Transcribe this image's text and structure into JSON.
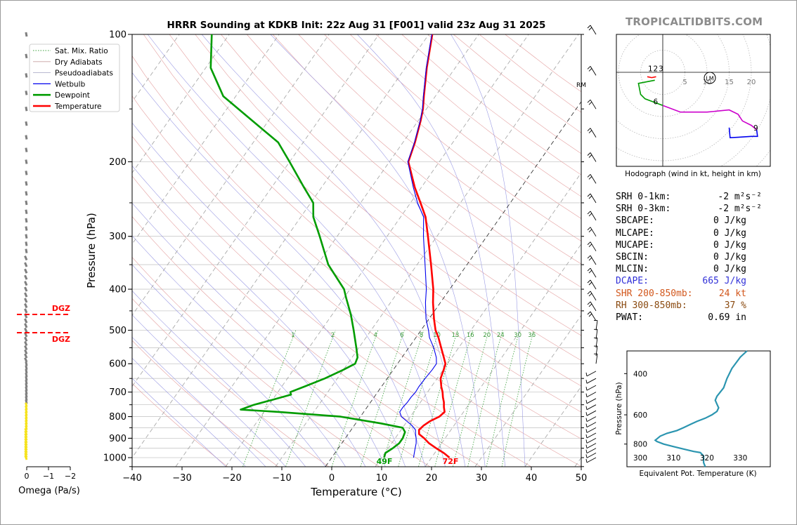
{
  "brand": "TROPICALTIDBITS.COM",
  "chart_data": [
    {
      "type": "line",
      "title": "HRRR Sounding at KDKB Init: 22z Aug 31 [F001] valid 23z Aug 31 2025",
      "xlabel": "Temperature (°C)",
      "ylabel": "Pressure (hPa)",
      "xlim": [
        -40,
        50
      ],
      "ylim": [
        1050,
        100
      ],
      "log_scale_y": true,
      "skew_t": true,
      "x_ticks": [
        -40,
        -30,
        -20,
        -10,
        0,
        10,
        20,
        30,
        40,
        50
      ],
      "y_ticks": [
        100,
        200,
        300,
        400,
        500,
        600,
        700,
        800,
        900,
        1000
      ],
      "mixing_ratio_labels": [
        "1",
        "2",
        "4",
        "6",
        "8",
        "10",
        "13",
        "16",
        "20",
        "24",
        "30",
        "36"
      ],
      "legend": {
        "placement": "top-left",
        "entries": [
          "Sat. Mix. Ratio",
          "Dry Adiabats",
          "Pseudoadiabats",
          "Wetbulb",
          "Dewpoint",
          "Temperature"
        ]
      },
      "series": [
        {
          "name": "Temperature",
          "color": "#ff0000",
          "points": [
            [
              1000,
              23.6
            ],
            [
              975,
              21.8
            ],
            [
              950,
              19.6
            ],
            [
              925,
              17.5
            ],
            [
              900,
              15.8
            ],
            [
              880,
              14.2
            ],
            [
              860,
              13.6
            ],
            [
              840,
              13.9
            ],
            [
              820,
              14.6
            ],
            [
              800,
              15.8
            ],
            [
              780,
              16.2
            ],
            [
              760,
              15.4
            ],
            [
              740,
              14.7
            ],
            [
              720,
              13.8
            ],
            [
              700,
              13.0
            ],
            [
              680,
              12.0
            ],
            [
              650,
              10.7
            ],
            [
              620,
              10.1
            ],
            [
              600,
              9.6
            ],
            [
              580,
              8.4
            ],
            [
              550,
              6.5
            ],
            [
              520,
              4.5
            ],
            [
              500,
              2.9
            ],
            [
              470,
              1.0
            ],
            [
              430,
              -1.5
            ],
            [
              400,
              -3.3
            ],
            [
              350,
              -7.2
            ],
            [
              300,
              -11.8
            ],
            [
              270,
              -15.0
            ],
            [
              250,
              -18.0
            ],
            [
              230,
              -21.3
            ],
            [
              200,
              -26.2
            ],
            [
              180,
              -27.6
            ],
            [
              160,
              -29.5
            ],
            [
              150,
              -30.7
            ],
            [
              140,
              -32.3
            ],
            [
              120,
              -35.7
            ],
            [
              100,
              -39.3
            ]
          ]
        },
        {
          "name": "Dewpoint",
          "color": "#009c00",
          "points": [
            [
              1000,
              10.5
            ],
            [
              975,
              10.1
            ],
            [
              950,
              10.9
            ],
            [
              925,
              11.5
            ],
            [
              900,
              11.5
            ],
            [
              870,
              11.1
            ],
            [
              850,
              10.0
            ],
            [
              830,
              5.0
            ],
            [
              800,
              -4.0
            ],
            [
              780,
              -17.0
            ],
            [
              770,
              -25.0
            ],
            [
              750,
              -23.0
            ],
            [
              730,
              -20.0
            ],
            [
              710,
              -17.0
            ],
            [
              700,
              -17.5
            ],
            [
              680,
              -15.5
            ],
            [
              650,
              -12.5
            ],
            [
              620,
              -10.0
            ],
            [
              600,
              -8.5
            ],
            [
              580,
              -8.9
            ],
            [
              550,
              -10.5
            ],
            [
              500,
              -13.5
            ],
            [
              460,
              -16.2
            ],
            [
              420,
              -19.5
            ],
            [
              400,
              -21.2
            ],
            [
              350,
              -27.8
            ],
            [
              300,
              -33.5
            ],
            [
              270,
              -37.5
            ],
            [
              250,
              -39.5
            ],
            [
              230,
              -43.5
            ],
            [
              200,
              -50.0
            ],
            [
              180,
              -55.0
            ],
            [
              160,
              -63.2
            ],
            [
              140,
              -72.5
            ],
            [
              120,
              -79.0
            ],
            [
              100,
              -83.5
            ]
          ]
        },
        {
          "name": "Wetbulb",
          "color": "#0000ee",
          "points": [
            [
              1000,
              16.4
            ],
            [
              975,
              15.9
            ],
            [
              950,
              15.4
            ],
            [
              925,
              14.9
            ],
            [
              900,
              14.2
            ],
            [
              880,
              13.5
            ],
            [
              860,
              12.9
            ],
            [
              840,
              11.6
            ],
            [
              820,
              9.9
            ],
            [
              800,
              8.2
            ],
            [
              780,
              7.2
            ],
            [
              760,
              7.2
            ],
            [
              740,
              7.4
            ],
            [
              720,
              7.4
            ],
            [
              700,
              7.6
            ],
            [
              680,
              7.5
            ],
            [
              650,
              7.6
            ],
            [
              620,
              7.8
            ],
            [
              600,
              7.8
            ],
            [
              580,
              6.9
            ],
            [
              550,
              5.0
            ],
            [
              520,
              2.7
            ],
            [
              500,
              1.5
            ],
            [
              470,
              -0.6
            ],
            [
              430,
              -3.0
            ],
            [
              400,
              -4.7
            ],
            [
              350,
              -8.4
            ],
            [
              300,
              -12.7
            ],
            [
              270,
              -15.4
            ],
            [
              250,
              -18.6
            ],
            [
              230,
              -21.6
            ],
            [
              200,
              -26.3
            ],
            [
              180,
              -27.7
            ],
            [
              160,
              -29.6
            ],
            [
              150,
              -30.8
            ],
            [
              140,
              -32.4
            ],
            [
              120,
              -35.8
            ],
            [
              100,
              -39.4
            ]
          ]
        }
      ],
      "annotations": {
        "surface_dewpoint": "49F",
        "surface_temperature": "72F",
        "rm_label": "RM"
      }
    },
    {
      "type": "line",
      "xlabel": "Omega (Pa/s)",
      "x_ticks": [
        "0",
        "−1",
        "−2"
      ],
      "dgz_label": "DGZ",
      "dgz_bounds_hpa": [
        461,
        508
      ],
      "colors": {
        "dgz": "#ff0000",
        "omega_upper": "#7f7f7f",
        "omega_lower": "#f5e21a"
      }
    },
    {
      "type": "line",
      "caption": "Hodograph (wind in kt, height in km)",
      "ring_labels": [
        "5",
        "10",
        "15",
        "20"
      ],
      "height_labels": [
        "1",
        "2",
        "3",
        "6",
        "9"
      ],
      "storm_motion_label": "LM",
      "colors": {
        "0-3km": "#ff0000",
        "3-6km": "#009c00",
        "6-9km": "#cc00cc",
        "9-12km": "#0000ee"
      },
      "points_u_v": [
        [
          -3.5,
          -1.0
        ],
        [
          -2.5,
          -1.2
        ],
        [
          -1.5,
          -1.0
        ],
        [
          -1.8,
          -1.8
        ],
        [
          -5.5,
          -2.5
        ],
        [
          -5.0,
          -5.0
        ],
        [
          -4.0,
          -6.0
        ],
        [
          0,
          -7.5
        ],
        [
          4,
          -9.0
        ],
        [
          10,
          -9.0
        ],
        [
          15,
          -8.5
        ],
        [
          17,
          -9.5
        ],
        [
          18,
          -11
        ],
        [
          20,
          -12
        ],
        [
          21.2,
          -13
        ],
        [
          21.4,
          -14.5
        ],
        [
          20,
          -14.5
        ],
        [
          17,
          -14.7
        ],
        [
          15.2,
          -14.8
        ],
        [
          15,
          -12.5
        ]
      ]
    },
    {
      "type": "line",
      "xlabel": "Equivalent Pot. Temperature (K)",
      "ylabel": "Pressure (hPa)",
      "x_ticks": [
        300,
        310,
        320,
        330
      ],
      "y_ticks": [
        400,
        600,
        800
      ],
      "xlim": [
        296,
        339
      ],
      "ylim": [
        1000,
        320
      ],
      "color": "#2b95b0",
      "points": [
        [
          1000,
          319.5
        ],
        [
          960,
          319
        ],
        [
          900,
          319
        ],
        [
          870,
          318
        ],
        [
          860,
          316
        ],
        [
          840,
          313
        ],
        [
          820,
          310
        ],
        [
          800,
          307
        ],
        [
          780,
          305
        ],
        [
          770,
          304.5
        ],
        [
          760,
          305
        ],
        [
          740,
          306
        ],
        [
          720,
          308
        ],
        [
          700,
          311
        ],
        [
          680,
          313
        ],
        [
          660,
          315
        ],
        [
          640,
          317
        ],
        [
          620,
          319.5
        ],
        [
          600,
          321.5
        ],
        [
          580,
          323
        ],
        [
          560,
          323.5
        ],
        [
          540,
          323
        ],
        [
          520,
          322.5
        ],
        [
          500,
          323
        ],
        [
          460,
          325
        ],
        [
          420,
          326
        ],
        [
          380,
          327.5
        ],
        [
          340,
          330
        ],
        [
          320,
          332
        ]
      ]
    }
  ],
  "stats": [
    {
      "label": "SRH 0-1km:",
      "value": "-2",
      "unit": "m²s⁻²",
      "color": "#000000"
    },
    {
      "label": "SRH 0-3km:",
      "value": "-2",
      "unit": "m²s⁻²",
      "color": "#000000"
    },
    {
      "label": "SBCAPE:",
      "value": "0 J/kg",
      "color": "#000000"
    },
    {
      "label": "MLCAPE:",
      "value": "0 J/kg",
      "color": "#000000"
    },
    {
      "label": "MUCAPE:",
      "value": "0 J/kg",
      "color": "#000000"
    },
    {
      "label": "SBCIN:",
      "value": "0 J/kg",
      "color": "#000000"
    },
    {
      "label": "MLCIN:",
      "value": "0 J/kg",
      "color": "#000000"
    },
    {
      "label": "DCAPE:",
      "value": "665 J/kg",
      "color": "#3030d8"
    },
    {
      "label": "SHR 200-850mb:",
      "value": "24 kt",
      "color": "#d2571c"
    },
    {
      "label": "RH 300-850mb:",
      "value": "37 %",
      "color": "#8a4a10"
    },
    {
      "label": "PWAT:",
      "value": "0.69 in",
      "color": "#000000"
    }
  ]
}
